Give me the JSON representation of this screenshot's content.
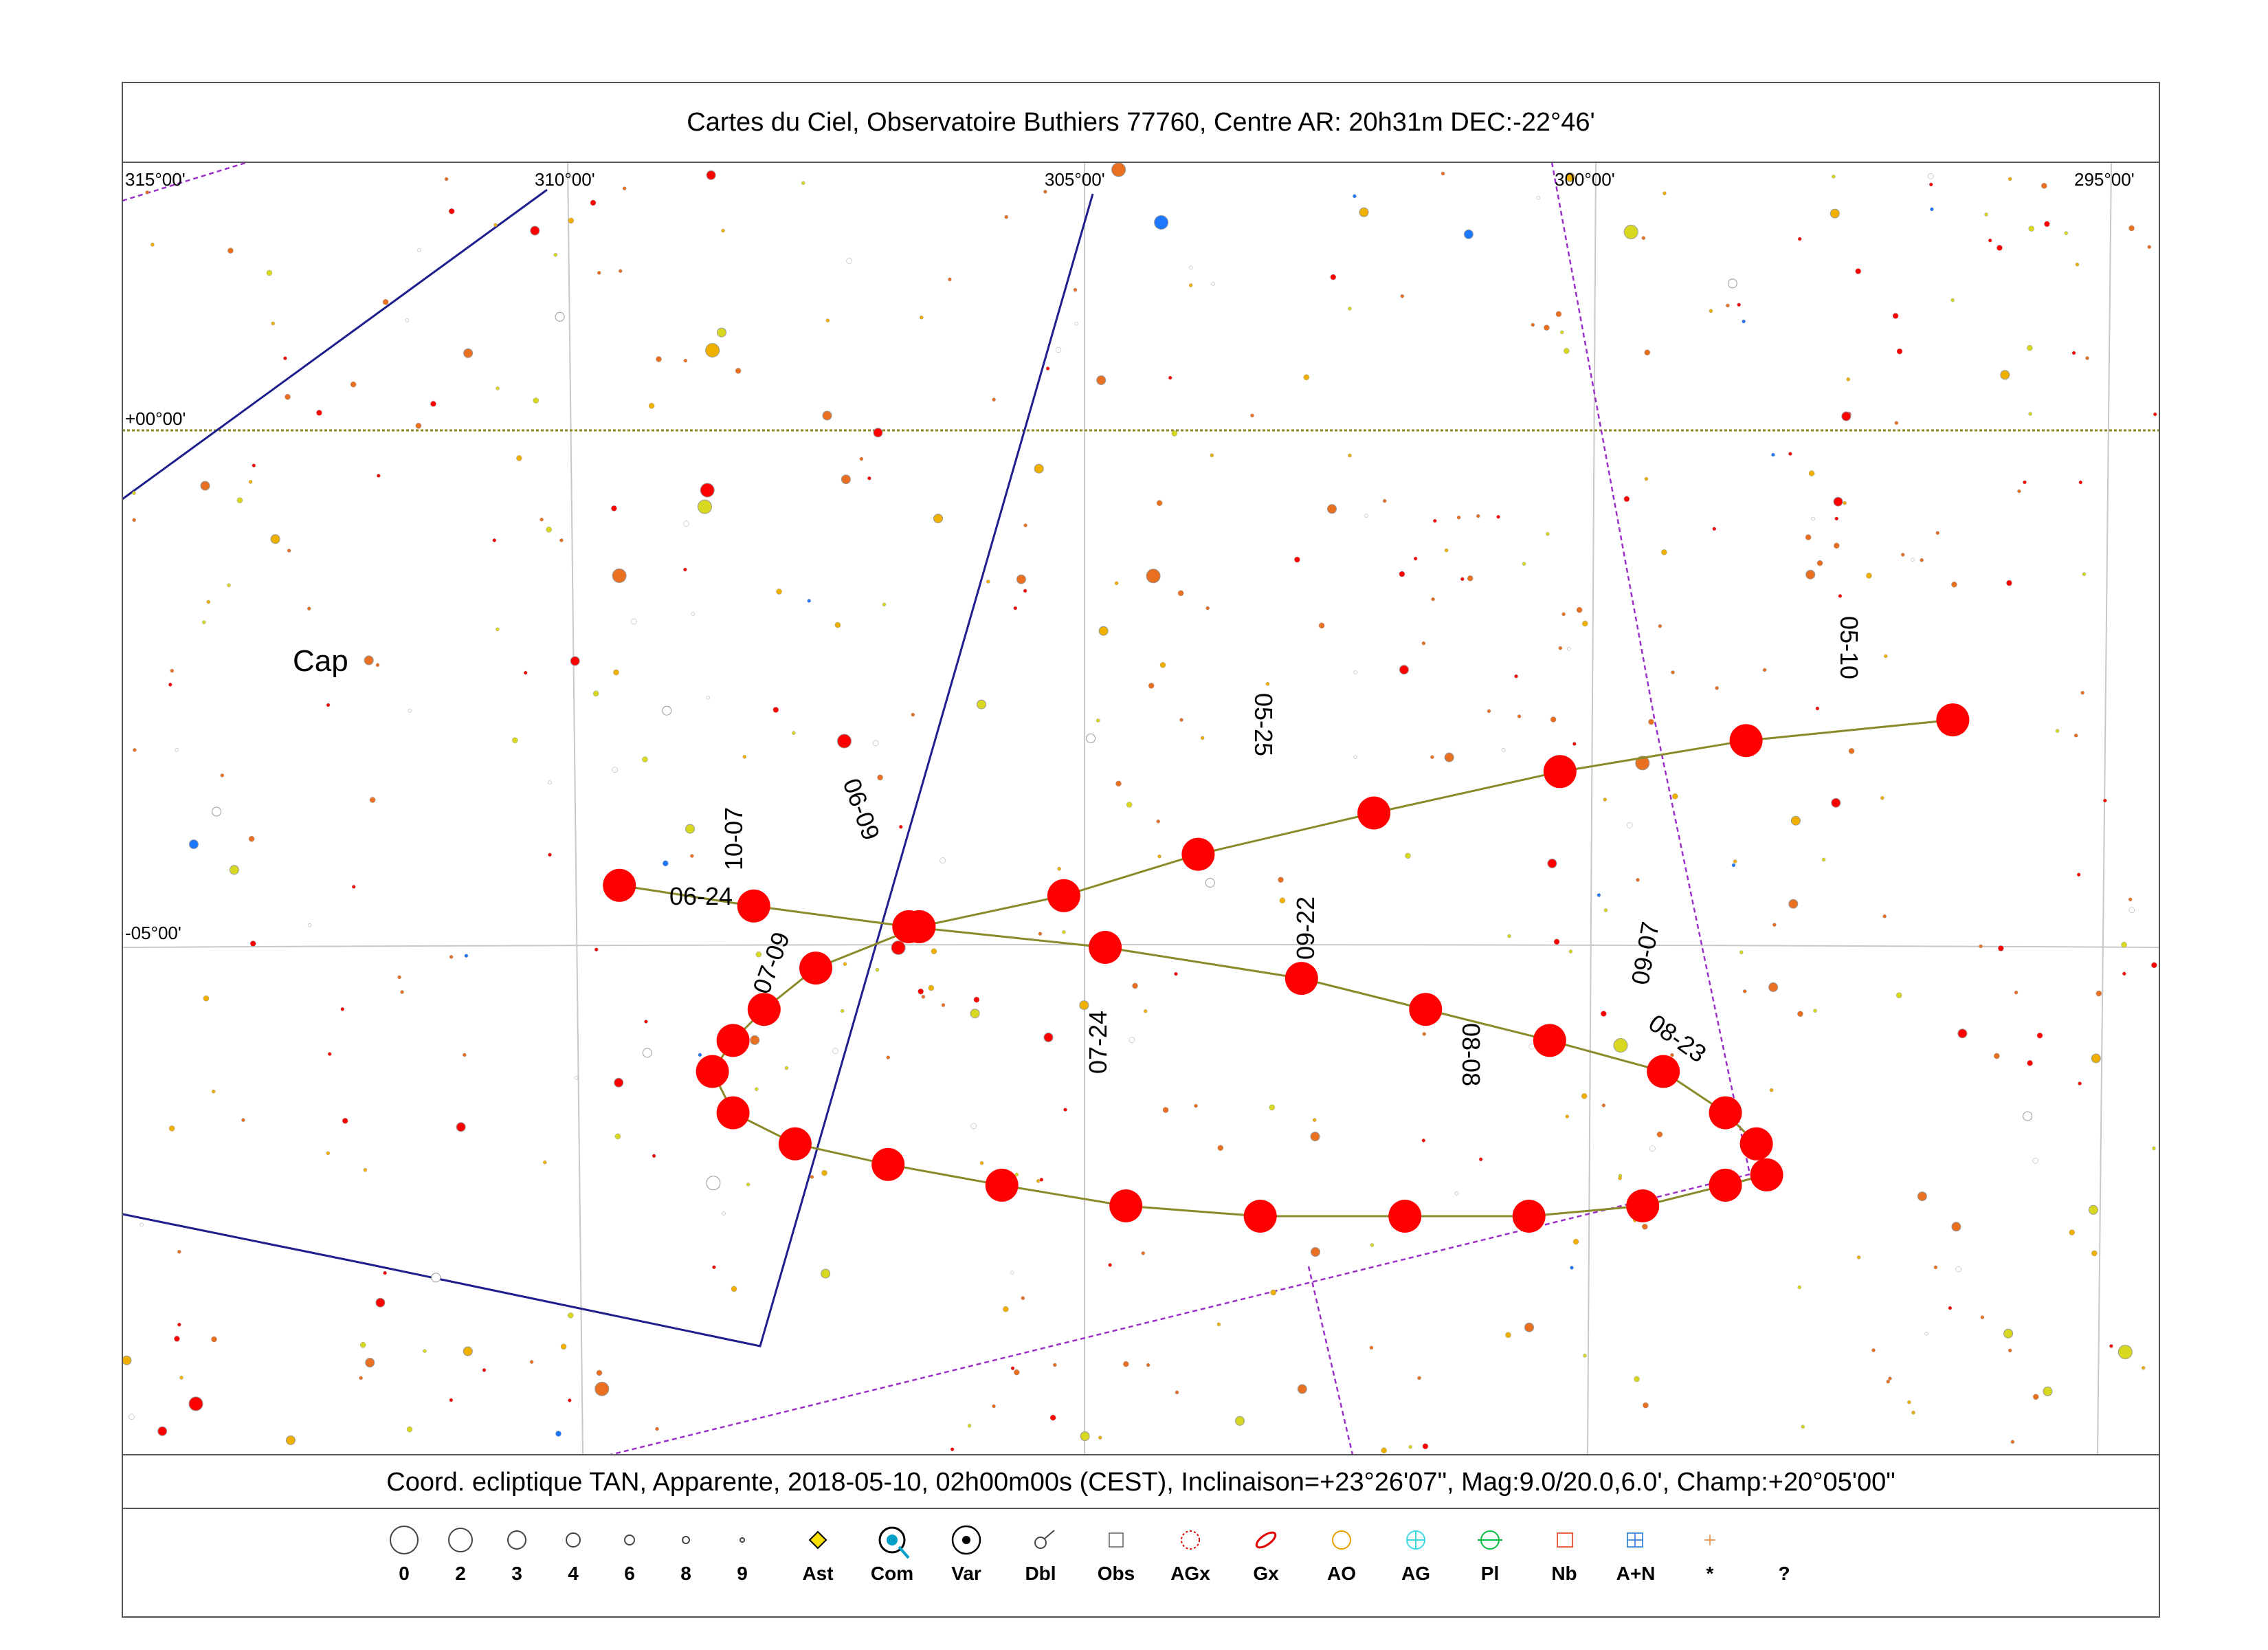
{
  "chart_data": {
    "type": "sky-chart",
    "title": "Cartes du Ciel, Observatoire Buthiers 77760, Centre AR: 20h31m DEC:-22°46'",
    "info_line": "Coord. ecliptique TAN, Apparente, 2018-05-10, 02h00m00s (CEST), Inclinaison=+23°26'07\", Mag:9.0/20.0,6.0', Champ:+20°05'00\"",
    "x_ticks": [
      "315°00'",
      "310°00'",
      "305°00'",
      "300°00'",
      "295°00'"
    ],
    "y_ticks": [
      "+00°00'",
      "-05°00'"
    ],
    "constellation_label": "Cap",
    "path_date_labels": [
      "05-10",
      "05-25",
      "06-09",
      "06-24",
      "07-09",
      "07-24",
      "08-08",
      "08-23",
      "09-07",
      "09-22",
      "10-07"
    ],
    "path_points_in_order": [
      [
        296.6,
        -2.8
      ],
      [
        298.6,
        -3.0
      ],
      [
        300.4,
        -3.3
      ],
      [
        302.2,
        -3.7
      ],
      [
        303.9,
        -4.1
      ],
      [
        305.2,
        -4.5
      ],
      [
        306.6,
        -4.8
      ],
      [
        307.6,
        -5.2
      ],
      [
        308.1,
        -5.6
      ],
      [
        308.4,
        -5.9
      ],
      [
        308.6,
        -6.2
      ],
      [
        308.4,
        -6.6
      ],
      [
        307.8,
        -6.9
      ],
      [
        306.9,
        -7.1
      ],
      [
        305.8,
        -7.3
      ],
      [
        304.6,
        -7.5
      ],
      [
        303.3,
        -7.6
      ],
      [
        301.9,
        -7.6
      ],
      [
        300.7,
        -7.6
      ],
      [
        299.6,
        -7.5
      ],
      [
        298.8,
        -7.3
      ],
      [
        298.4,
        -7.2
      ],
      [
        298.5,
        -6.9
      ],
      [
        298.8,
        -6.6
      ],
      [
        299.4,
        -6.2
      ],
      [
        300.5,
        -5.9
      ],
      [
        301.7,
        -5.6
      ],
      [
        302.9,
        -5.3
      ],
      [
        304.8,
        -5.0
      ],
      [
        306.7,
        -4.8
      ],
      [
        308.2,
        -4.6
      ],
      [
        309.5,
        -4.4
      ]
    ]
  },
  "legend": {
    "items": [
      {
        "icon": "mag-0-circle-icon",
        "label": "0"
      },
      {
        "icon": "mag-2-circle-icon",
        "label": "2"
      },
      {
        "icon": "mag-3-circle-icon",
        "label": "3"
      },
      {
        "icon": "mag-4-circle-icon",
        "label": "4"
      },
      {
        "icon": "mag-6-circle-icon",
        "label": "6"
      },
      {
        "icon": "mag-8-circle-icon",
        "label": "8"
      },
      {
        "icon": "mag-9-dot-icon",
        "label": "9"
      },
      {
        "icon": "asteroid-diamond-icon",
        "label": "Ast"
      },
      {
        "icon": "comet-icon",
        "label": "Com"
      },
      {
        "icon": "variable-star-icon",
        "label": "Var"
      },
      {
        "icon": "double-star-icon",
        "label": "Dbl"
      },
      {
        "icon": "observer-square-icon",
        "label": "Obs"
      },
      {
        "icon": "galaxy-cluster-icon",
        "label": "AGx"
      },
      {
        "icon": "galaxy-ellipse-icon",
        "label": "Gx"
      },
      {
        "icon": "open-cluster-icon",
        "label": "AO"
      },
      {
        "icon": "globular-cluster-icon",
        "label": "AG"
      },
      {
        "icon": "planetary-nebula-icon",
        "label": "Pl"
      },
      {
        "icon": "nebula-square-icon",
        "label": "Nb"
      },
      {
        "icon": "cluster-nebula-icon",
        "label": "A+N"
      },
      {
        "icon": "star-cross-icon",
        "label": "*"
      },
      {
        "icon": "unknown-icon",
        "label": "?"
      }
    ]
  },
  "colors": {
    "path": "#8a8a2a",
    "path_marker": "#ff0000",
    "constellation_line": "#1e1e8c",
    "boundary": "#9b30c8",
    "ecliptic": "#8a8a2a",
    "grid": "#c8c8c8"
  }
}
